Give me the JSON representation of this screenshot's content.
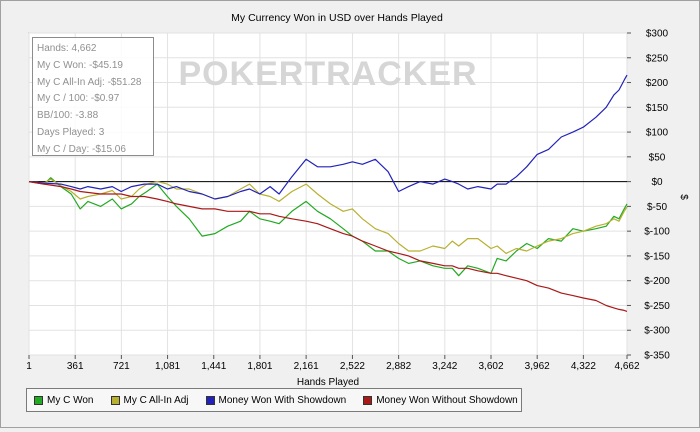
{
  "chart_data": {
    "type": "line",
    "title": "My Currency Won in USD over Hands Played",
    "xlabel": "Hands Played",
    "ylabel": "$",
    "xlim": [
      1,
      4662
    ],
    "ylim": [
      -350,
      300
    ],
    "x_ticks": [
      "1",
      "361",
      "721",
      "1,081",
      "1,441",
      "1,801",
      "2,161",
      "2,522",
      "2,882",
      "3,242",
      "3,602",
      "3,962",
      "4,322",
      "4,662"
    ],
    "x_tick_values": [
      1,
      361,
      721,
      1081,
      1441,
      1801,
      2161,
      2522,
      2882,
      3242,
      3602,
      3962,
      4322,
      4662
    ],
    "y_ticks": [
      "$300",
      "$250",
      "$200",
      "$150",
      "$100",
      "$50",
      "$0",
      "$-50",
      "$-100",
      "$-150",
      "$-200",
      "$-250",
      "$-300",
      "$-350"
    ],
    "y_tick_values": [
      300,
      250,
      200,
      150,
      100,
      50,
      0,
      -50,
      -100,
      -150,
      -200,
      -250,
      -300,
      -350
    ],
    "grid": true,
    "legend_position": "bottom-left",
    "watermark": "POKERTRACKER",
    "series": [
      {
        "name": "My C Won",
        "color": "#22aa22",
        "points": [
          [
            1,
            0
          ],
          [
            120,
            -5
          ],
          [
            170,
            8
          ],
          [
            250,
            -10
          ],
          [
            330,
            -25
          ],
          [
            400,
            -55
          ],
          [
            460,
            -40
          ],
          [
            560,
            -50
          ],
          [
            650,
            -35
          ],
          [
            720,
            -55
          ],
          [
            800,
            -45
          ],
          [
            860,
            -30
          ],
          [
            920,
            -20
          ],
          [
            1000,
            -5
          ],
          [
            1080,
            -30
          ],
          [
            1150,
            -50
          ],
          [
            1250,
            -75
          ],
          [
            1350,
            -110
          ],
          [
            1450,
            -105
          ],
          [
            1550,
            -90
          ],
          [
            1650,
            -80
          ],
          [
            1720,
            -60
          ],
          [
            1800,
            -75
          ],
          [
            1880,
            -80
          ],
          [
            1950,
            -85
          ],
          [
            2050,
            -60
          ],
          [
            2161,
            -40
          ],
          [
            2250,
            -60
          ],
          [
            2350,
            -75
          ],
          [
            2450,
            -95
          ],
          [
            2522,
            -110
          ],
          [
            2600,
            -120
          ],
          [
            2700,
            -140
          ],
          [
            2800,
            -140
          ],
          [
            2882,
            -155
          ],
          [
            2960,
            -165
          ],
          [
            3050,
            -160
          ],
          [
            3150,
            -170
          ],
          [
            3242,
            -175
          ],
          [
            3300,
            -175
          ],
          [
            3350,
            -190
          ],
          [
            3420,
            -170
          ],
          [
            3500,
            -175
          ],
          [
            3602,
            -185
          ],
          [
            3650,
            -155
          ],
          [
            3720,
            -160
          ],
          [
            3800,
            -140
          ],
          [
            3880,
            -125
          ],
          [
            3962,
            -135
          ],
          [
            4050,
            -115
          ],
          [
            4150,
            -120
          ],
          [
            4240,
            -95
          ],
          [
            4322,
            -100
          ],
          [
            4420,
            -95
          ],
          [
            4500,
            -90
          ],
          [
            4560,
            -70
          ],
          [
            4600,
            -75
          ],
          [
            4640,
            -55
          ],
          [
            4662,
            -45
          ]
        ]
      },
      {
        "name": "My C All-In Adj",
        "color": "#b8b030",
        "points": [
          [
            1,
            0
          ],
          [
            120,
            -3
          ],
          [
            170,
            5
          ],
          [
            250,
            -8
          ],
          [
            330,
            -20
          ],
          [
            400,
            -35
          ],
          [
            460,
            -30
          ],
          [
            560,
            -25
          ],
          [
            650,
            -18
          ],
          [
            720,
            -35
          ],
          [
            800,
            -30
          ],
          [
            860,
            -15
          ],
          [
            920,
            -5
          ],
          [
            1000,
            0
          ],
          [
            1080,
            -5
          ],
          [
            1150,
            -15
          ],
          [
            1250,
            -15
          ],
          [
            1350,
            -25
          ],
          [
            1450,
            -35
          ],
          [
            1550,
            -30
          ],
          [
            1650,
            -15
          ],
          [
            1720,
            -5
          ],
          [
            1800,
            -25
          ],
          [
            1880,
            -30
          ],
          [
            1950,
            -40
          ],
          [
            2050,
            -20
          ],
          [
            2161,
            -5
          ],
          [
            2250,
            -25
          ],
          [
            2350,
            -45
          ],
          [
            2450,
            -60
          ],
          [
            2522,
            -55
          ],
          [
            2600,
            -75
          ],
          [
            2700,
            -95
          ],
          [
            2800,
            -105
          ],
          [
            2882,
            -125
          ],
          [
            2960,
            -140
          ],
          [
            3050,
            -140
          ],
          [
            3150,
            -130
          ],
          [
            3242,
            -135
          ],
          [
            3300,
            -120
          ],
          [
            3350,
            -130
          ],
          [
            3420,
            -115
          ],
          [
            3500,
            -115
          ],
          [
            3602,
            -135
          ],
          [
            3650,
            -130
          ],
          [
            3720,
            -145
          ],
          [
            3800,
            -135
          ],
          [
            3880,
            -140
          ],
          [
            3962,
            -130
          ],
          [
            4050,
            -120
          ],
          [
            4150,
            -115
          ],
          [
            4240,
            -105
          ],
          [
            4322,
            -100
          ],
          [
            4420,
            -90
          ],
          [
            4500,
            -85
          ],
          [
            4560,
            -75
          ],
          [
            4600,
            -80
          ],
          [
            4640,
            -60
          ],
          [
            4662,
            -51
          ]
        ]
      },
      {
        "name": "Money Won With Showdown",
        "color": "#2222bb",
        "points": [
          [
            1,
            0
          ],
          [
            120,
            -3
          ],
          [
            250,
            -5
          ],
          [
            330,
            -10
          ],
          [
            400,
            -15
          ],
          [
            460,
            -10
          ],
          [
            560,
            -15
          ],
          [
            650,
            -10
          ],
          [
            720,
            -20
          ],
          [
            800,
            -10
          ],
          [
            900,
            -5
          ],
          [
            1000,
            -5
          ],
          [
            1080,
            -15
          ],
          [
            1150,
            -10
          ],
          [
            1250,
            -20
          ],
          [
            1350,
            -25
          ],
          [
            1450,
            -35
          ],
          [
            1550,
            -30
          ],
          [
            1650,
            -20
          ],
          [
            1720,
            -15
          ],
          [
            1800,
            -25
          ],
          [
            1880,
            -10
          ],
          [
            1950,
            -25
          ],
          [
            2050,
            10
          ],
          [
            2161,
            45
          ],
          [
            2250,
            30
          ],
          [
            2350,
            30
          ],
          [
            2450,
            35
          ],
          [
            2522,
            40
          ],
          [
            2600,
            35
          ],
          [
            2700,
            45
          ],
          [
            2800,
            20
          ],
          [
            2882,
            -20
          ],
          [
            2960,
            -10
          ],
          [
            3050,
            0
          ],
          [
            3150,
            -5
          ],
          [
            3242,
            5
          ],
          [
            3300,
            0
          ],
          [
            3350,
            -5
          ],
          [
            3420,
            -15
          ],
          [
            3500,
            -10
          ],
          [
            3602,
            -15
          ],
          [
            3650,
            -5
          ],
          [
            3720,
            -5
          ],
          [
            3800,
            10
          ],
          [
            3880,
            30
          ],
          [
            3962,
            55
          ],
          [
            4050,
            65
          ],
          [
            4150,
            90
          ],
          [
            4240,
            100
          ],
          [
            4322,
            110
          ],
          [
            4420,
            130
          ],
          [
            4500,
            150
          ],
          [
            4560,
            175
          ],
          [
            4600,
            185
          ],
          [
            4640,
            205
          ],
          [
            4662,
            215
          ]
        ]
      },
      {
        "name": "Money Won Without Showdown",
        "color": "#aa1818",
        "points": [
          [
            1,
            0
          ],
          [
            120,
            -5
          ],
          [
            250,
            -10
          ],
          [
            330,
            -15
          ],
          [
            400,
            -20
          ],
          [
            560,
            -25
          ],
          [
            650,
            -25
          ],
          [
            720,
            -25
          ],
          [
            800,
            -30
          ],
          [
            900,
            -30
          ],
          [
            1000,
            -35
          ],
          [
            1080,
            -40
          ],
          [
            1150,
            -45
          ],
          [
            1250,
            -50
          ],
          [
            1350,
            -55
          ],
          [
            1450,
            -55
          ],
          [
            1550,
            -60
          ],
          [
            1650,
            -60
          ],
          [
            1720,
            -60
          ],
          [
            1800,
            -65
          ],
          [
            1880,
            -65
          ],
          [
            1950,
            -70
          ],
          [
            2050,
            -75
          ],
          [
            2161,
            -80
          ],
          [
            2250,
            -85
          ],
          [
            2350,
            -95
          ],
          [
            2450,
            -105
          ],
          [
            2522,
            -110
          ],
          [
            2600,
            -120
          ],
          [
            2700,
            -130
          ],
          [
            2800,
            -140
          ],
          [
            2882,
            -145
          ],
          [
            2960,
            -150
          ],
          [
            3050,
            -160
          ],
          [
            3150,
            -165
          ],
          [
            3242,
            -170
          ],
          [
            3300,
            -170
          ],
          [
            3350,
            -175
          ],
          [
            3420,
            -175
          ],
          [
            3500,
            -180
          ],
          [
            3602,
            -185
          ],
          [
            3650,
            -185
          ],
          [
            3720,
            -190
          ],
          [
            3800,
            -195
          ],
          [
            3880,
            -200
          ],
          [
            3962,
            -210
          ],
          [
            4050,
            -215
          ],
          [
            4150,
            -225
          ],
          [
            4240,
            -230
          ],
          [
            4322,
            -235
          ],
          [
            4420,
            -240
          ],
          [
            4500,
            -250
          ],
          [
            4560,
            -255
          ],
          [
            4600,
            -258
          ],
          [
            4640,
            -260
          ],
          [
            4662,
            -262
          ]
        ]
      }
    ]
  },
  "stats_box": {
    "lines": [
      "Hands: 4,662",
      "My C Won: -$45.19",
      "My C All-In Adj: -$51.28",
      "My C / 100: -$0.97",
      "BB/100: -3.88",
      "Days Played: 3",
      "My C / Day: -$15.06"
    ]
  },
  "legend": {
    "items": [
      {
        "label": "My C Won",
        "color": "#22aa22"
      },
      {
        "label": "My C All-In Adj",
        "color": "#b8b030"
      },
      {
        "label": "Money Won With Showdown",
        "color": "#2222bb"
      },
      {
        "label": "Money Won Without Showdown",
        "color": "#aa1818"
      }
    ]
  }
}
